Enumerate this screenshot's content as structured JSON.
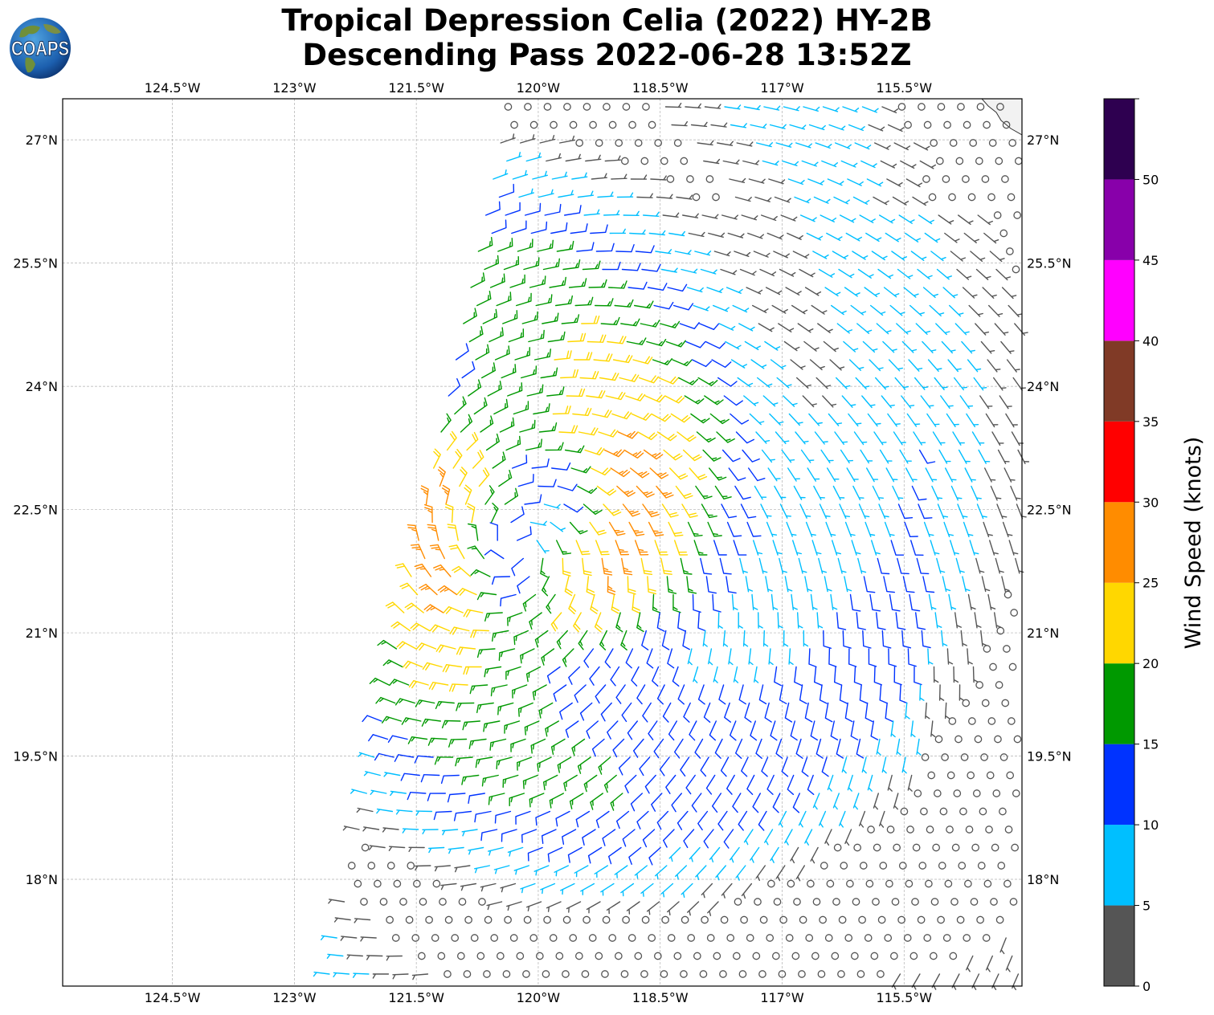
{
  "title": {
    "line1": "Tropical Depression Celia (2022) HY-2B",
    "line2": "Descending Pass 2022-06-28 13:52Z"
  },
  "logo": {
    "text": "COAPS",
    "icon": "globe-icon"
  },
  "colors": {
    "ocean": "#ffffff",
    "land": "#f2f2f2",
    "gridline": "#b0b0b0",
    "eye_marker": "#555555"
  },
  "chart_data": {
    "type": "wind-barb-map",
    "storm_center": {
      "lon": -120.25,
      "lat": 22.05
    },
    "swath_corners": [
      [
        -120.35,
        27.5
      ],
      [
        -114.05,
        27.5
      ],
      [
        -114.05,
        16.7
      ],
      [
        -122.6,
        16.7
      ]
    ],
    "lon_range": [
      -125.85,
      -114.05
    ],
    "lat_range": [
      16.7,
      27.5
    ],
    "lon_ticks": [
      "124.5°W",
      "123°W",
      "121.5°W",
      "120°W",
      "118.5°W",
      "117°W",
      "115.5°W"
    ],
    "lat_ticks": [
      "27°N",
      "25.5°N",
      "24°N",
      "22.5°N",
      "21°N",
      "19.5°N",
      "18°N"
    ],
    "grid": true,
    "colorbar": {
      "label": "Wind Speed (knots)",
      "ticks": [
        "0",
        "5",
        "10",
        "15",
        "20",
        "25",
        "30",
        "35",
        "40",
        "45",
        "50"
      ],
      "bins": [
        {
          "min": 0,
          "max": 5,
          "color": "#555555"
        },
        {
          "min": 5,
          "max": 10,
          "color": "#00bfff"
        },
        {
          "min": 10,
          "max": 15,
          "color": "#0033ff"
        },
        {
          "min": 15,
          "max": 20,
          "color": "#009900"
        },
        {
          "min": 20,
          "max": 25,
          "color": "#ffd700"
        },
        {
          "min": 25,
          "max": 30,
          "color": "#ff8c00"
        },
        {
          "min": 30,
          "max": 35,
          "color": "#ff0000"
        },
        {
          "min": 35,
          "max": 40,
          "color": "#803a26"
        },
        {
          "min": 40,
          "max": 45,
          "color": "#ff00ff"
        },
        {
          "min": 45,
          "max": 50,
          "color": "#8800aa"
        },
        {
          "min": 50,
          "max": 55,
          "color": "#2e0050"
        }
      ]
    }
  }
}
